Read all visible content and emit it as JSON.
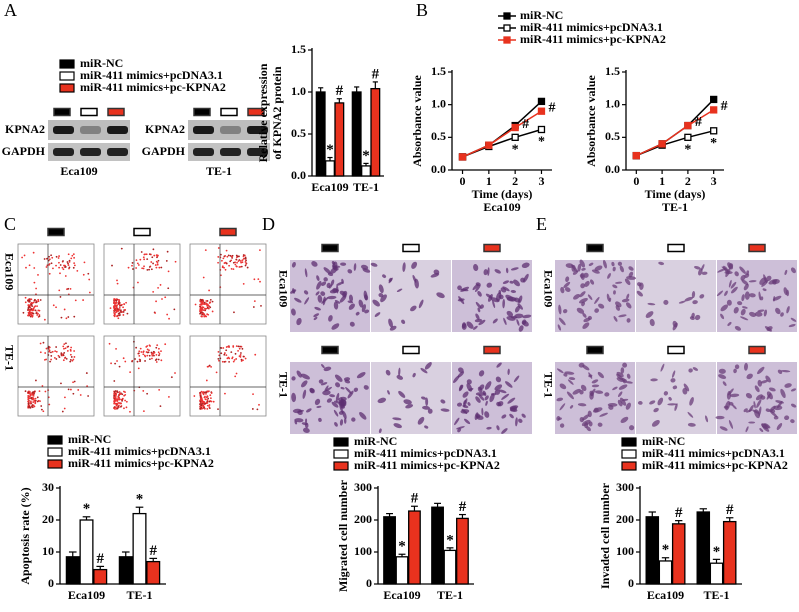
{
  "figure": {
    "panel_labels": [
      "A",
      "B",
      "C",
      "D",
      "E"
    ],
    "blot_labels": [
      "KPNA2",
      "GAPDH"
    ],
    "blot_cell_lines": [
      "Eca109",
      "TE-1"
    ],
    "image_rows": [
      "Eca109",
      "TE-1"
    ]
  },
  "chart_data": [
    {
      "type": "bar",
      "ylabel": [
        "Relative expression",
        "of KPNA2 protein"
      ],
      "categories": [
        "Eca109",
        "TE-1"
      ],
      "ylim": [
        0,
        1.5
      ],
      "yticks": [
        {
          "value": 0,
          "label": "0.0"
        },
        {
          "value": 0.5,
          "label": "0.5"
        },
        {
          "value": 1,
          "label": "1.0"
        },
        {
          "value": 1.5,
          "label": "1.5"
        }
      ],
      "series": [
        {
          "name": "miR-NC",
          "color": "#000000",
          "values": [
            1.0,
            1.0
          ],
          "errors": [
            0.05,
            0.06
          ],
          "annotations": [
            null,
            null
          ]
        },
        {
          "name": "miR-411 mimics+pcDNA3.1",
          "color": "#ffffff",
          "values": [
            0.18,
            0.12
          ],
          "errors": [
            0.04,
            0.03
          ],
          "annotations": [
            "*",
            "*"
          ]
        },
        {
          "name": "miR-411 mimics+pc-KPNA2",
          "color": "#e8321e",
          "values": [
            0.87,
            1.04
          ],
          "errors": [
            0.05,
            0.08
          ],
          "annotations": [
            "#",
            "#"
          ]
        }
      ]
    },
    {
      "type": "line",
      "ylabel": "Absorbance value",
      "xlabel": "Time (days)",
      "caption": "Eca109",
      "x": [
        0,
        1,
        2,
        3
      ],
      "xlim": [
        -0.4,
        3.4
      ],
      "xticks": [
        0,
        1,
        2,
        3
      ],
      "ylim": [
        0,
        1.5
      ],
      "yticks": [
        {
          "value": 0,
          "label": "0.0"
        },
        {
          "value": 0.5,
          "label": "0.5"
        },
        {
          "value": 1,
          "label": "1.0"
        },
        {
          "value": 1.5,
          "label": "1.5"
        }
      ],
      "series": [
        {
          "name": "miR-NC",
          "color": "#000000",
          "values": [
            0.2,
            0.38,
            0.68,
            1.05
          ],
          "annotations": [
            null,
            null,
            null,
            null
          ]
        },
        {
          "name": "miR-411 mimics+pcDNA3.1",
          "color": "#ffffff",
          "values": [
            0.2,
            0.36,
            0.5,
            0.62
          ],
          "annotations": [
            null,
            null,
            "*",
            "*"
          ]
        },
        {
          "name": "miR-411 mimics+pc-KPNA2",
          "color": "#e8321e",
          "values": [
            0.2,
            0.38,
            0.65,
            0.9
          ],
          "annotations": [
            null,
            null,
            "#",
            "#"
          ]
        }
      ]
    },
    {
      "type": "line",
      "ylabel": "Absorbance value",
      "xlabel": "Time (days)",
      "caption": "TE-1",
      "x": [
        0,
        1,
        2,
        3
      ],
      "xlim": [
        -0.4,
        3.4
      ],
      "xticks": [
        0,
        1,
        2,
        3
      ],
      "ylim": [
        0,
        1.5
      ],
      "yticks": [
        {
          "value": 0,
          "label": "0.0"
        },
        {
          "value": 0.5,
          "label": "0.5"
        },
        {
          "value": 1,
          "label": "1.0"
        },
        {
          "value": 1.5,
          "label": "1.5"
        }
      ],
      "series": [
        {
          "color": "#000000",
          "values": [
            0.22,
            0.4,
            0.68,
            1.08
          ],
          "annotations": [
            null,
            null,
            null,
            null
          ]
        },
        {
          "color": "#ffffff",
          "values": [
            0.22,
            0.38,
            0.5,
            0.6
          ],
          "annotations": [
            null,
            null,
            "*",
            "*"
          ]
        },
        {
          "color": "#e8321e",
          "values": [
            0.22,
            0.4,
            0.68,
            0.92
          ],
          "annotations": [
            null,
            null,
            "#",
            "#"
          ]
        }
      ]
    },
    {
      "type": "bar",
      "ylabel": [
        "Apoptosis rate (%)"
      ],
      "categories": [
        "Eca109",
        "TE-1"
      ],
      "ylim": [
        0,
        30
      ],
      "yticks": [
        0,
        10,
        20,
        30
      ],
      "series": [
        {
          "name": "miR-NC",
          "color": "#000000",
          "values": [
            8.5,
            8.5
          ],
          "errors": [
            1.5,
            1.5
          ],
          "annotations": [
            null,
            null
          ]
        },
        {
          "name": "miR-411 mimics+pcDNA3.1",
          "color": "#ffffff",
          "values": [
            20,
            22
          ],
          "errors": [
            1,
            2
          ],
          "annotations": [
            "*",
            "*"
          ]
        },
        {
          "name": "miR-411 mimics+pc-KPNA2",
          "color": "#e8321e",
          "values": [
            4.5,
            7
          ],
          "errors": [
            1,
            1
          ],
          "annotations": [
            "#",
            "#"
          ]
        }
      ]
    },
    {
      "type": "bar",
      "ylabel": [
        "Migrated cell number"
      ],
      "categories": [
        "Eca109",
        "TE-1"
      ],
      "ylim": [
        0,
        300
      ],
      "yticks": [
        0,
        100,
        200,
        300
      ],
      "series": [
        {
          "name": "miR-NC",
          "color": "#000000",
          "values": [
            210,
            240
          ],
          "errors": [
            10,
            12
          ],
          "annotations": [
            null,
            null
          ]
        },
        {
          "name": "miR-411 mimics+pcDNA3.1",
          "color": "#ffffff",
          "values": [
            85,
            105
          ],
          "errors": [
            8,
            8
          ],
          "annotations": [
            "*",
            "*"
          ]
        },
        {
          "name": "miR-411 mimics+pc-KPNA2",
          "color": "#e8321e",
          "values": [
            228,
            205
          ],
          "errors": [
            15,
            12
          ],
          "annotations": [
            "#",
            "#"
          ]
        }
      ]
    },
    {
      "type": "bar",
      "ylabel": [
        "Invaded cell number"
      ],
      "categories": [
        "Eca109",
        "TE-1"
      ],
      "ylim": [
        0,
        300
      ],
      "yticks": [
        0,
        100,
        200,
        300
      ],
      "series": [
        {
          "name": "miR-NC",
          "color": "#000000",
          "values": [
            210,
            225
          ],
          "errors": [
            15,
            10
          ],
          "annotations": [
            null,
            null
          ]
        },
        {
          "name": "miR-411 mimics+pcDNA3.1",
          "color": "#ffffff",
          "values": [
            72,
            65
          ],
          "errors": [
            10,
            12
          ],
          "annotations": [
            "*",
            "*"
          ]
        },
        {
          "name": "miR-411 mimics+pc-KPNA2",
          "color": "#e8321e",
          "values": [
            188,
            195
          ],
          "errors": [
            10,
            12
          ],
          "annotations": [
            "#",
            "#"
          ]
        }
      ]
    }
  ]
}
